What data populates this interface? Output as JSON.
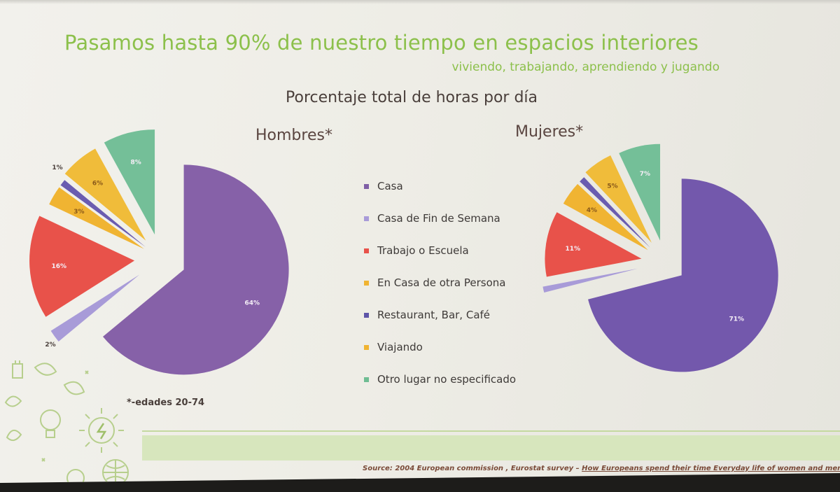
{
  "slide": {
    "title": "Pasamos hasta 90% de nuestro tiempo en espacios interiores",
    "subtitle": "viviendo, trabajando, aprendiendo y jugando",
    "chart_title": "Porcentaje total de horas por día",
    "note": "*-edades 20-74",
    "source_prefix": "Source: 2004 European commission , Eurostat survey  –",
    "source_link": "How Europeans spend their time Everyday life of women and men"
  },
  "chart_data": [
    {
      "type": "pie",
      "title": "Hombres*",
      "categories": [
        "Casa",
        "Casa de Fin de Semana",
        "Trabajo o Escuela",
        "En Casa de otra Persona",
        "Restaurant, Bar, Café",
        "Viajando",
        "Otro lugar no especificado"
      ],
      "values": [
        64,
        2,
        16,
        3,
        1,
        6,
        8
      ],
      "data_labels": [
        "64%",
        "2%",
        "16%",
        "3%",
        "1%",
        "6%",
        "8%"
      ],
      "exploded": true
    },
    {
      "type": "pie",
      "title": "Mujeres*",
      "categories": [
        "Casa",
        "Casa de Fin de Semana",
        "Trabajo o Escuela",
        "En Casa de otra Persona",
        "Restaurant, Bar, Café",
        "Viajando",
        "Otro lugar no especificado"
      ],
      "values": [
        71,
        1,
        11,
        4,
        1,
        5,
        7
      ],
      "data_labels": [
        "71%",
        "",
        "11%",
        "4%",
        "",
        "5%",
        "7%"
      ],
      "exploded": true
    }
  ],
  "legend": {
    "placement": "center",
    "items": [
      {
        "label": "Casa",
        "color": "#7f5fa6"
      },
      {
        "label": "Casa de Fin de Semana",
        "color": "#a89bd8"
      },
      {
        "label": "Trabajo o Escuela",
        "color": "#e8524a"
      },
      {
        "label": "En Casa de otra Persona",
        "color": "#f0b432"
      },
      {
        "label": "Restaurant, Bar, Café",
        "color": "#5e55a8"
      },
      {
        "label": "Viajando",
        "color": "#f0b432"
      },
      {
        "label": "Otro lugar no especificado",
        "color": "#6fbd93"
      }
    ]
  },
  "pie_colors": {
    "men": [
      "#8661a8",
      "#a89bd8",
      "#e8524a",
      "#f0b432",
      "#6a5cb0",
      "#f0bc3a",
      "#74bf98"
    ],
    "women": [
      "#7358ac",
      "#a89bd8",
      "#e8524a",
      "#f0b432",
      "#6a5cb0",
      "#f0bc3a",
      "#74bf98"
    ]
  }
}
